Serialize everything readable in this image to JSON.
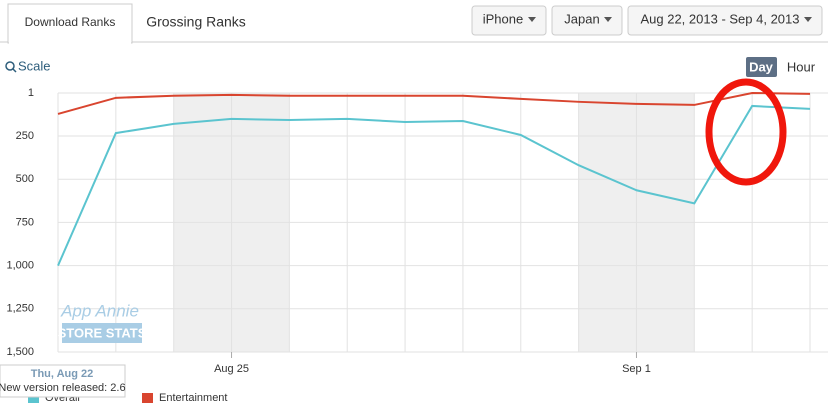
{
  "tabs": [
    "Download Ranks",
    "Grossing Ranks"
  ],
  "filters": [
    "iPhone",
    "Japan",
    "Aug 22, 2013 - Sep 4, 2013"
  ],
  "scale_label": "Scale",
  "granularity": [
    "Day",
    "Hour"
  ],
  "watermark": [
    "App Annie",
    "STORE STATS"
  ],
  "tooltip": {
    "date": "Thu, Aug 22",
    "text": "New version released: 2.6"
  },
  "chart_data": {
    "type": "line",
    "categories": [
      null,
      null,
      null,
      "Aug 25",
      null,
      null,
      null,
      null,
      null,
      null,
      "Sep 1",
      null,
      null,
      null
    ],
    "series": [
      {
        "name": "Overall",
        "color": "#5bc4cf",
        "values": [
          1000,
          233,
          180,
          151,
          157,
          151,
          169,
          163,
          244,
          419,
          564,
          640,
          76,
          93
        ]
      },
      {
        "name": "Entertainment",
        "color": "#d9452f",
        "values": [
          122,
          29,
          17,
          12,
          17,
          17,
          17,
          17,
          35,
          52,
          64,
          70,
          1,
          6
        ]
      }
    ],
    "ylim": [
      1,
      1500
    ],
    "y_inverted": true,
    "yticks": [
      1,
      250,
      500,
      750,
      {
        "value": 1000,
        "label": "1,000"
      },
      {
        "value": 1250,
        "label": "1,250"
      },
      {
        "value": 1500,
        "label": "1,500"
      }
    ],
    "grid": true
  }
}
